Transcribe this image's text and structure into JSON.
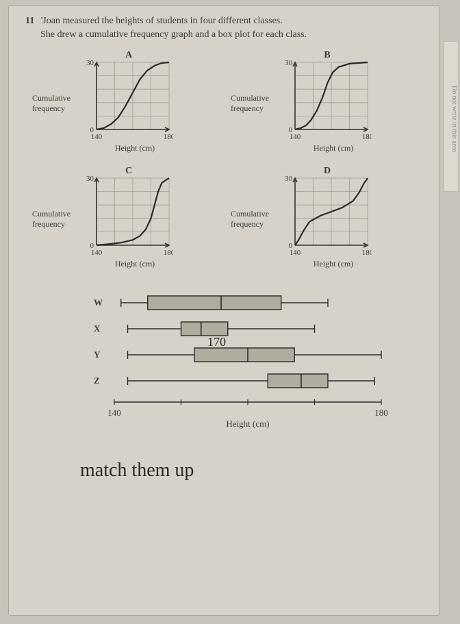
{
  "question": {
    "number": "11",
    "line1": "'Joan measured the heights of students in four different classes.",
    "line2": "She drew a cumulative frequency graph and a box plot for each class."
  },
  "side_text": "Do not write in this area",
  "axis": {
    "ylabel_l1": "Cumulative",
    "ylabel_l2": "frequency",
    "xlabel": "Height (cm)",
    "ymax": "30",
    "ymin": "0",
    "xmin": "140",
    "xmax": "180"
  },
  "charts": {
    "grid_color": "#9e9a90",
    "axis_color": "#333",
    "curve_color": "#2a2a2a",
    "bg_color": "#d9d5cc",
    "A": {
      "title": "A",
      "curve": [
        [
          0,
          0
        ],
        [
          0.1,
          0.02
        ],
        [
          0.2,
          0.08
        ],
        [
          0.3,
          0.18
        ],
        [
          0.4,
          0.35
        ],
        [
          0.5,
          0.55
        ],
        [
          0.6,
          0.75
        ],
        [
          0.7,
          0.88
        ],
        [
          0.8,
          0.95
        ],
        [
          0.9,
          0.99
        ],
        [
          1,
          1
        ]
      ]
    },
    "B": {
      "title": "B",
      "curve": [
        [
          0,
          0
        ],
        [
          0.08,
          0.02
        ],
        [
          0.15,
          0.06
        ],
        [
          0.22,
          0.14
        ],
        [
          0.3,
          0.28
        ],
        [
          0.38,
          0.48
        ],
        [
          0.45,
          0.7
        ],
        [
          0.52,
          0.85
        ],
        [
          0.6,
          0.93
        ],
        [
          0.75,
          0.98
        ],
        [
          1,
          1
        ]
      ]
    },
    "C": {
      "title": "C",
      "curve": [
        [
          0,
          0
        ],
        [
          0.2,
          0.02
        ],
        [
          0.35,
          0.04
        ],
        [
          0.5,
          0.08
        ],
        [
          0.6,
          0.14
        ],
        [
          0.68,
          0.24
        ],
        [
          0.75,
          0.4
        ],
        [
          0.8,
          0.6
        ],
        [
          0.85,
          0.8
        ],
        [
          0.9,
          0.93
        ],
        [
          1,
          1
        ]
      ]
    },
    "D": {
      "title": "D",
      "curve": [
        [
          0,
          0
        ],
        [
          0.05,
          0.08
        ],
        [
          0.12,
          0.22
        ],
        [
          0.2,
          0.35
        ],
        [
          0.35,
          0.44
        ],
        [
          0.5,
          0.5
        ],
        [
          0.65,
          0.56
        ],
        [
          0.8,
          0.66
        ],
        [
          0.88,
          0.78
        ],
        [
          0.95,
          0.92
        ],
        [
          1,
          1
        ]
      ]
    }
  },
  "boxplots": {
    "xmin": 140,
    "xmax": 180,
    "xmin_label": "140",
    "xmax_label": "180",
    "xlabel": "Height (cm)",
    "box_fill": "#b0ac9f",
    "line_color": "#2a2a2a",
    "W": {
      "label": "W",
      "min": 141,
      "q1": 145,
      "med": 156,
      "q3": 165,
      "max": 172
    },
    "X": {
      "label": "X",
      "min": 142,
      "q1": 150,
      "med": 153,
      "q3": 157,
      "max": 170
    },
    "Y": {
      "label": "Y",
      "min": 142,
      "q1": 152,
      "med": 160,
      "q3": 167,
      "max": 180
    },
    "Z": {
      "label": "Z",
      "min": 142,
      "q1": 163,
      "med": 168,
      "q3": 172,
      "max": 179
    }
  },
  "handwriting": {
    "match": "match them up",
    "annot170": "170"
  }
}
